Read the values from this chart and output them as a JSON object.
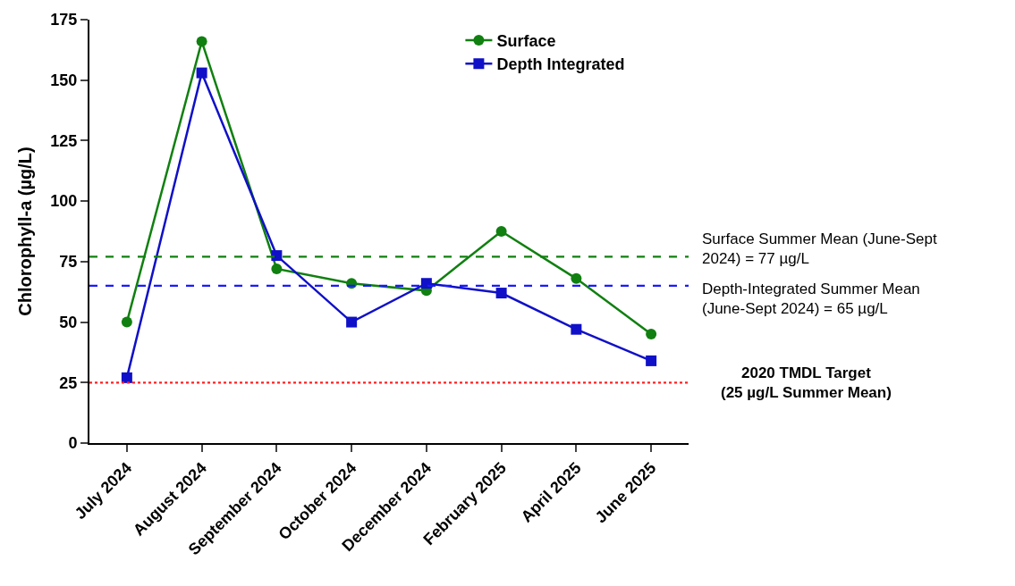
{
  "chart_data": {
    "type": "line",
    "ylabel": "Chlorophyll-a (µg/L)",
    "categories": [
      "July 2024",
      "August 2024",
      "September 2024",
      "October 2024",
      "December 2024",
      "February 2025",
      "April 2025",
      "June 2025"
    ],
    "series": [
      {
        "name": "Surface",
        "color": "#108010",
        "marker": "circle",
        "values": [
          50,
          166,
          72,
          66,
          63,
          87.5,
          68,
          45
        ]
      },
      {
        "name": "Depth Integrated",
        "color": "#1010c8",
        "marker": "square",
        "values": [
          27,
          153,
          77.5,
          50,
          66,
          62,
          47,
          34
        ]
      }
    ],
    "ylim": [
      0,
      175
    ],
    "yticks": [
      0,
      25,
      50,
      75,
      100,
      125,
      150,
      175
    ],
    "ref_lines": [
      {
        "axis": "y",
        "value": 77,
        "label": "Surface Summer Mean (June-Sept\n2024) = 77 µg/L",
        "color": "#108010",
        "line_style": "dashed"
      },
      {
        "axis": "y",
        "value": 65,
        "label": "Depth-Integrated Summer Mean\n(June-Sept 2024) = 65 µg/L",
        "color": "#1a1aff",
        "line_style": "dashed"
      },
      {
        "axis": "y",
        "value": 25,
        "label": "2020 TMDL Target\n(25 µg/L Summer Mean)",
        "color": "#ff2020",
        "line_style": "dotted"
      }
    ],
    "legend": "top",
    "line_style": "solid"
  }
}
